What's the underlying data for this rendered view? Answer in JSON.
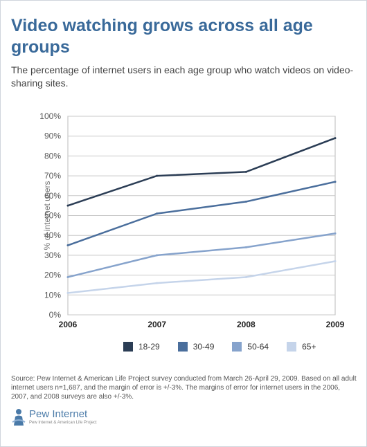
{
  "title": "Video watching grows across all age groups",
  "subtitle": "The percentage of internet users in each age group who watch videos on video-sharing sites.",
  "source": "Source: Pew Internet & American Life Project survey conducted from March 26-April 29, 2009. Based on all adult internet users n=1,687, and the margin of error is +/-3%. The margins of error for internet users in the 2006, 2007, and 2008 surveys are also +/-3%.",
  "logo": {
    "name": "Pew Internet",
    "tagline": "Pew Internet & American Life Project",
    "icon": "person-icon"
  },
  "chart_data": {
    "type": "line",
    "title": "Video watching grows across all age groups",
    "xlabel": "",
    "ylabel": "% of internet users",
    "x": [
      "2006",
      "2007",
      "2008",
      "2009"
    ],
    "ylim": [
      0,
      100
    ],
    "yticks": [
      "0%",
      "10%",
      "20%",
      "30%",
      "40%",
      "50%",
      "60%",
      "70%",
      "80%",
      "90%",
      "100%"
    ],
    "grid": true,
    "legend_position": "bottom",
    "series": [
      {
        "name": "18-29",
        "color": "#2b3d55",
        "values": [
          55,
          70,
          72,
          89
        ]
      },
      {
        "name": "30-49",
        "color": "#4a6e9c",
        "values": [
          35,
          51,
          57,
          67
        ]
      },
      {
        "name": "50-64",
        "color": "#86a3cc",
        "values": [
          19,
          30,
          34,
          41
        ]
      },
      {
        "name": "65+",
        "color": "#c5d4ea",
        "values": [
          11,
          16,
          19,
          27
        ]
      }
    ]
  }
}
